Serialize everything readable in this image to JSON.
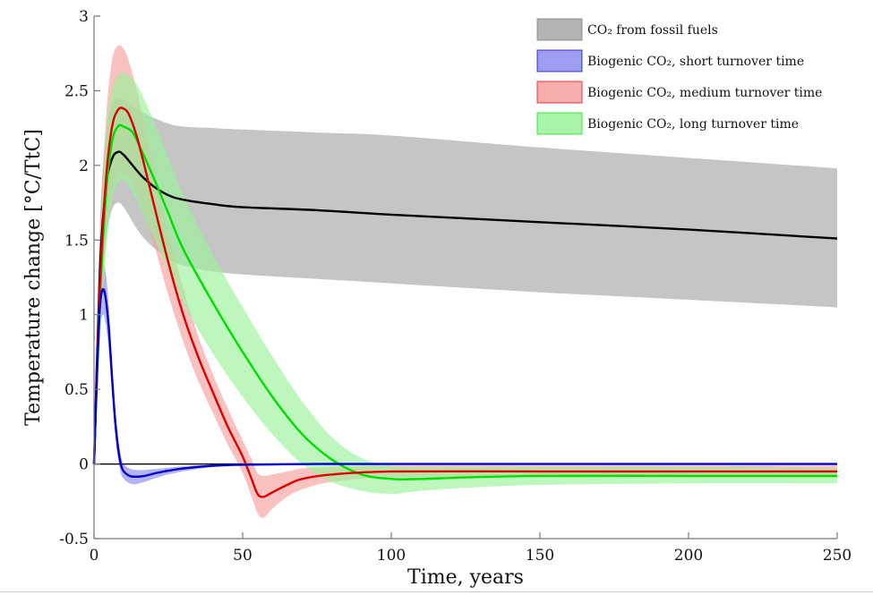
{
  "chart_data": {
    "type": "line",
    "title": "",
    "xlabel": "Time, years",
    "ylabel": "Temperature change [°C/TtC]",
    "xlim": [
      0,
      250
    ],
    "ylim": [
      -0.5,
      3
    ],
    "xticks": [
      0,
      50,
      100,
      150,
      200,
      250
    ],
    "xtick_labels": [
      "0",
      "50",
      "100",
      "150",
      "200",
      "250"
    ],
    "yticks": [
      -0.5,
      0,
      0.5,
      1,
      1.5,
      2,
      2.5,
      3
    ],
    "ytick_labels": [
      "-0.5",
      "0",
      "0.5",
      "1",
      "1.5",
      "2",
      "2.5",
      "3"
    ],
    "grid": false,
    "legend_position": "top-right",
    "zero_line": true,
    "series": [
      {
        "name": "CO2 from fossil fuels",
        "legend_label": "CO₂ from fossil fuels",
        "line_color": "#000000",
        "band_color": "#a6a6a6",
        "x": [
          0,
          2,
          4,
          6,
          8,
          10,
          13,
          16,
          20,
          25,
          30,
          40,
          50,
          75,
          100,
          150,
          200,
          250
        ],
        "mean": [
          0,
          1.3,
          1.85,
          2.04,
          2.09,
          2.07,
          2.0,
          1.93,
          1.86,
          1.8,
          1.77,
          1.74,
          1.72,
          1.7,
          1.67,
          1.62,
          1.57,
          1.51
        ],
        "upper": [
          0,
          1.6,
          2.2,
          2.4,
          2.45,
          2.44,
          2.4,
          2.36,
          2.32,
          2.28,
          2.26,
          2.25,
          2.24,
          2.22,
          2.2,
          2.12,
          2.05,
          1.98
        ],
        "lower": [
          0,
          1.0,
          1.5,
          1.7,
          1.75,
          1.72,
          1.62,
          1.53,
          1.45,
          1.38,
          1.33,
          1.29,
          1.27,
          1.24,
          1.21,
          1.15,
          1.1,
          1.05
        ]
      },
      {
        "name": "Biogenic CO2, short turnover time",
        "legend_label": "Biogenic CO₂, short turnover time",
        "line_color": "#0000cc",
        "band_color": "#8c8cf0",
        "x": [
          0,
          1,
          2,
          3,
          4,
          5,
          6,
          7,
          8,
          9,
          10,
          12,
          14,
          17,
          20,
          25,
          30,
          40,
          50,
          75,
          100,
          150,
          200,
          250
        ],
        "mean": [
          0,
          0.6,
          1.05,
          1.17,
          1.1,
          0.9,
          0.6,
          0.32,
          0.12,
          0.0,
          -0.05,
          -0.08,
          -0.085,
          -0.08,
          -0.065,
          -0.045,
          -0.03,
          -0.012,
          -0.005,
          0,
          0,
          0,
          0,
          0
        ],
        "upper": [
          0,
          0.75,
          1.22,
          1.34,
          1.27,
          1.05,
          0.72,
          0.42,
          0.2,
          0.06,
          0.0,
          -0.03,
          -0.04,
          -0.04,
          -0.035,
          -0.025,
          -0.015,
          -0.005,
          0,
          0,
          0,
          0,
          0,
          0
        ],
        "lower": [
          0,
          0.45,
          0.88,
          1.0,
          0.93,
          0.75,
          0.48,
          0.22,
          0.04,
          -0.06,
          -0.1,
          -0.13,
          -0.135,
          -0.12,
          -0.1,
          -0.07,
          -0.05,
          -0.02,
          -0.01,
          0,
          0,
          0,
          0,
          0
        ]
      },
      {
        "name": "Biogenic CO2, medium turnover time",
        "legend_label": "Biogenic CO₂, medium turnover time",
        "line_color": "#dd0000",
        "band_color": "#f7a0a0",
        "x": [
          0,
          2,
          4,
          6,
          8,
          10,
          12,
          15,
          20,
          25,
          30,
          35,
          40,
          45,
          50,
          53,
          55,
          57,
          60,
          65,
          70,
          80,
          100,
          150,
          200,
          250
        ],
        "mean": [
          0,
          1.2,
          1.9,
          2.25,
          2.37,
          2.38,
          2.33,
          2.15,
          1.75,
          1.35,
          1.0,
          0.72,
          0.48,
          0.25,
          0.05,
          -0.1,
          -0.2,
          -0.22,
          -0.19,
          -0.14,
          -0.1,
          -0.07,
          -0.05,
          -0.05,
          -0.05,
          -0.05
        ],
        "upper": [
          0,
          1.5,
          2.3,
          2.7,
          2.8,
          2.78,
          2.68,
          2.45,
          1.98,
          1.55,
          1.18,
          0.86,
          0.6,
          0.37,
          0.16,
          0.03,
          -0.06,
          -0.08,
          -0.07,
          -0.05,
          -0.03,
          -0.02,
          -0.01,
          -0.01,
          -0.01,
          -0.01
        ],
        "lower": [
          0,
          0.9,
          1.5,
          1.8,
          1.93,
          1.95,
          1.92,
          1.78,
          1.48,
          1.13,
          0.82,
          0.56,
          0.34,
          0.13,
          -0.06,
          -0.22,
          -0.33,
          -0.36,
          -0.3,
          -0.22,
          -0.17,
          -0.12,
          -0.09,
          -0.09,
          -0.09,
          -0.09
        ]
      },
      {
        "name": "Biogenic CO2, long turnover time",
        "legend_label": "Biogenic CO₂, long turnover time",
        "line_color": "#00dd00",
        "band_color": "#9af29a",
        "x": [
          0,
          2,
          4,
          6,
          8,
          10,
          13,
          16,
          20,
          25,
          30,
          40,
          50,
          60,
          70,
          80,
          90,
          100,
          110,
          125,
          150,
          200,
          250
        ],
        "mean": [
          0,
          1.1,
          1.8,
          2.15,
          2.26,
          2.26,
          2.22,
          2.1,
          1.92,
          1.68,
          1.44,
          1.08,
          0.75,
          0.45,
          0.2,
          0.03,
          -0.07,
          -0.1,
          -0.1,
          -0.09,
          -0.08,
          -0.08,
          -0.08
        ],
        "upper": [
          0,
          1.4,
          2.2,
          2.5,
          2.6,
          2.62,
          2.58,
          2.48,
          2.3,
          2.05,
          1.8,
          1.4,
          1.05,
          0.72,
          0.42,
          0.18,
          0.04,
          -0.01,
          -0.02,
          -0.02,
          -0.02,
          -0.02,
          -0.03
        ],
        "lower": [
          0,
          0.8,
          1.4,
          1.75,
          1.88,
          1.9,
          1.82,
          1.7,
          1.52,
          1.3,
          1.08,
          0.74,
          0.45,
          0.2,
          0.0,
          -0.12,
          -0.18,
          -0.2,
          -0.18,
          -0.16,
          -0.14,
          -0.13,
          -0.13
        ]
      }
    ]
  }
}
